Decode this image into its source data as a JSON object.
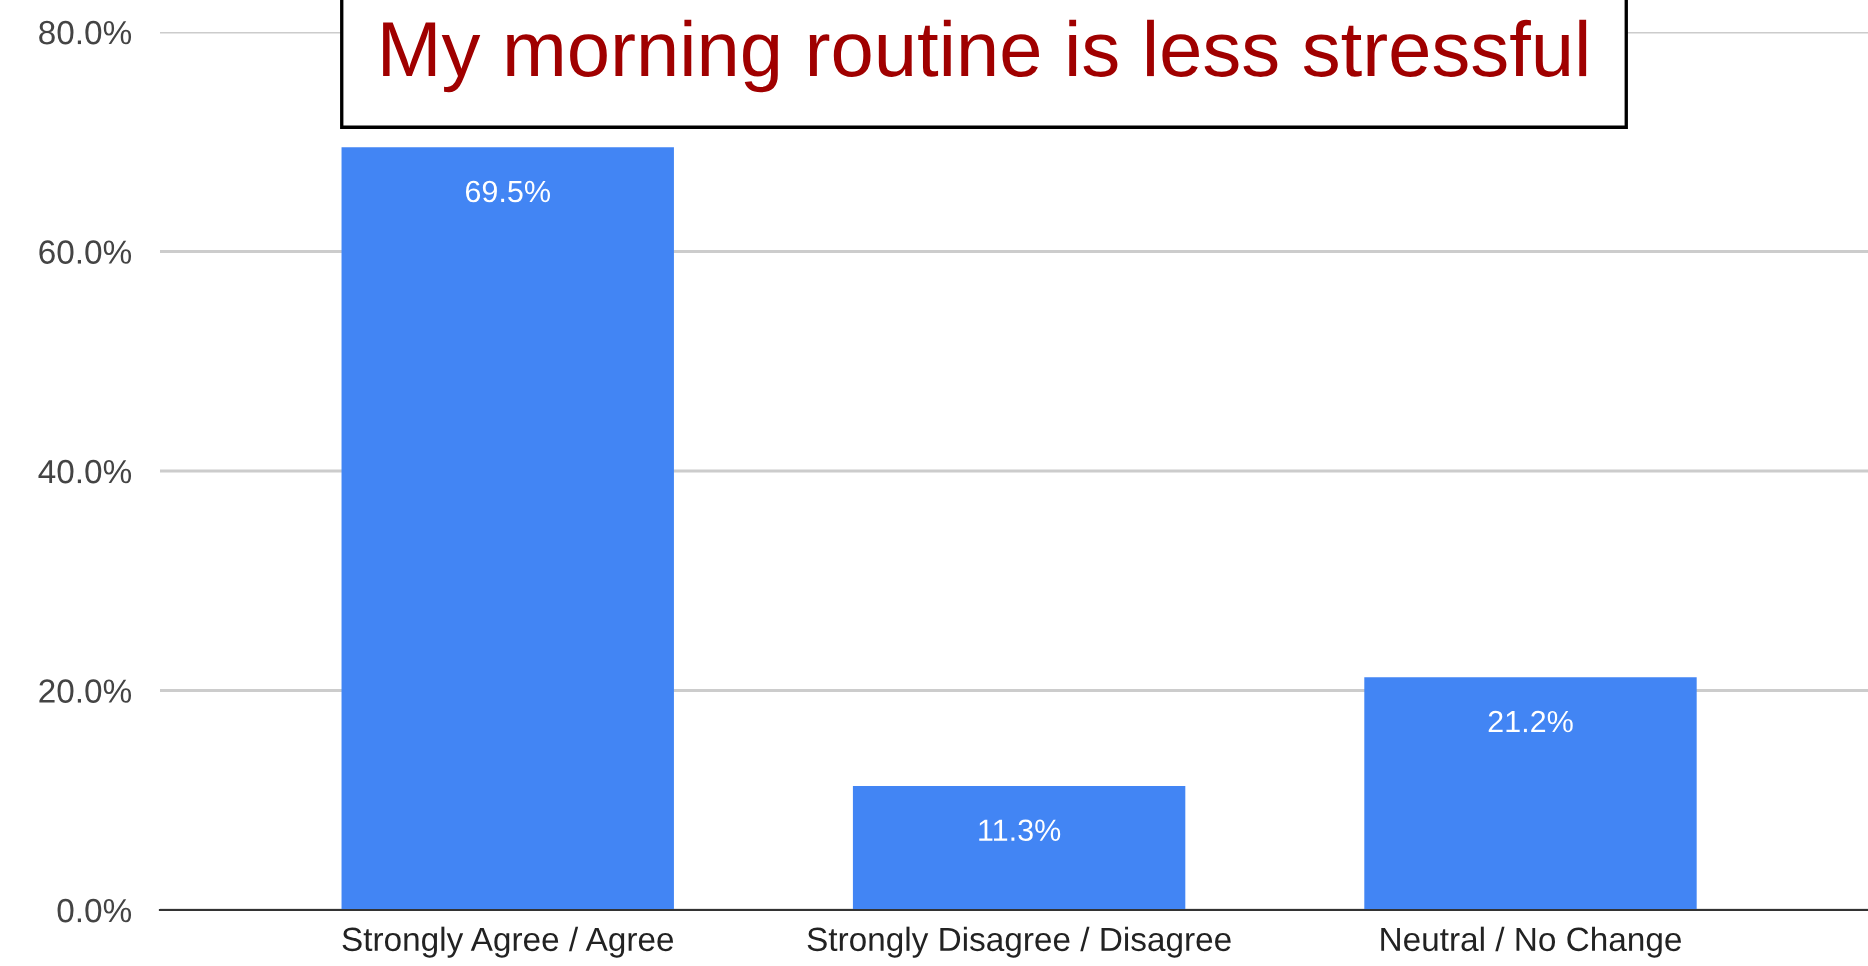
{
  "chart_data": {
    "type": "bar",
    "title": "My morning routine is less stressful",
    "categories": [
      "Strongly Agree / Agree",
      "Strongly Disagree / Disagree",
      "Neutral / No Change"
    ],
    "values": [
      69.5,
      11.3,
      21.2
    ],
    "color": "#4285f4",
    "value_labels": [
      "69.5%",
      "11.3%",
      "21.2%"
    ],
    "ylim": [
      0,
      80
    ],
    "yticks": [
      {
        "value": 0,
        "label": "0.0%"
      },
      {
        "value": 20,
        "label": "20.0%"
      },
      {
        "value": 40,
        "label": "40.0%"
      },
      {
        "value": 60,
        "label": "60.0%"
      },
      {
        "value": 80,
        "label": "80.0%"
      }
    ],
    "grid": "y",
    "legend": false
  }
}
